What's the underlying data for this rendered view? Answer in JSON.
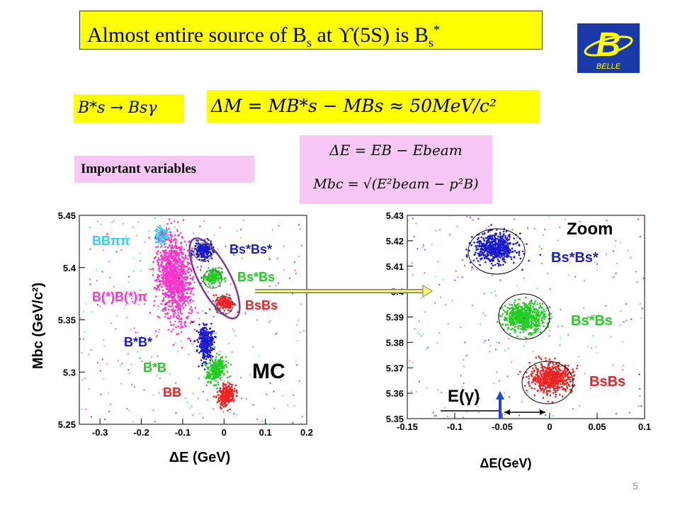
{
  "slide": {
    "title_main": "Almost entire source of B",
    "title_sub_s": "s",
    "title_at": " at ",
    "title_upsilon": "ϒ(5S) is B",
    "title_sub_s2": "s",
    "title_sup_star": "*",
    "logo_text": "BELLE",
    "logo_letter": "B",
    "eq1": "B*s → Bsγ",
    "eq2": "ΔM = MB*s − MBs ≈ 50MeV/c²",
    "eq3": "ΔE = EB − Ebeam",
    "eq4": "Mbc = √(E²beam − p²B)",
    "important_label": "Important variables",
    "page_number": "5"
  },
  "chart_data": [
    {
      "type": "scatter",
      "title": "",
      "xlabel": "ΔE   (GeV)",
      "ylabel": "Mbc (GeV/c²)",
      "xlim": [
        -0.35,
        0.2
      ],
      "ylim": [
        5.25,
        5.45
      ],
      "xticks": [
        "-0.3",
        "-0.2",
        "-0.1",
        "0",
        "0.1",
        "0.2"
      ],
      "yticks": [
        "5.25",
        "5.3",
        "5.35",
        "5.4",
        "5.45"
      ],
      "annotation": "MC",
      "clusters": [
        {
          "label": "BBππ",
          "color": "#33ccee",
          "cx": -0.15,
          "cy": 5.43
        },
        {
          "label": "B(*)B(*)π",
          "color": "#ff33cc",
          "cx": -0.12,
          "cy": 5.39
        },
        {
          "label": "Bs*Bs*",
          "color": "#1a1acc",
          "cx": -0.05,
          "cy": 5.416
        },
        {
          "label": "Bs*Bs",
          "color": "#22cc22",
          "cx": -0.028,
          "cy": 5.391
        },
        {
          "label": "BsBs",
          "color": "#ee2222",
          "cx": 0.002,
          "cy": 5.366
        },
        {
          "label": "B*B*",
          "color": "#1a1acc",
          "cx": -0.045,
          "cy": 5.328
        },
        {
          "label": "B*B",
          "color": "#22cc22",
          "cx": -0.02,
          "cy": 5.302
        },
        {
          "label": "BB",
          "color": "#ee2222",
          "cx": 0.005,
          "cy": 5.278
        }
      ]
    },
    {
      "type": "scatter",
      "title": "Zoom",
      "xlabel": "ΔE(GeV)",
      "ylabel": "",
      "xlim": [
        -0.15,
        0.1
      ],
      "ylim": [
        5.35,
        5.43
      ],
      "xticks": [
        "-0.15",
        "-0.1",
        "-0.05",
        "0",
        "0.05",
        "0.1"
      ],
      "yticks": [
        "5.35",
        "5.36",
        "5.37",
        "5.38",
        "5.39",
        "5.4",
        "5.41",
        "5.42",
        "5.43"
      ],
      "annotation": "E(γ)",
      "clusters": [
        {
          "label": "Bs*Bs*",
          "color": "#1a1acc",
          "cx": -0.057,
          "cy": 5.417
        },
        {
          "label": "Bs*Bs",
          "color": "#22cc22",
          "cx": -0.027,
          "cy": 5.39
        },
        {
          "label": "BsBs",
          "color": "#ee2222",
          "cx": 0.002,
          "cy": 5.366
        }
      ]
    }
  ]
}
